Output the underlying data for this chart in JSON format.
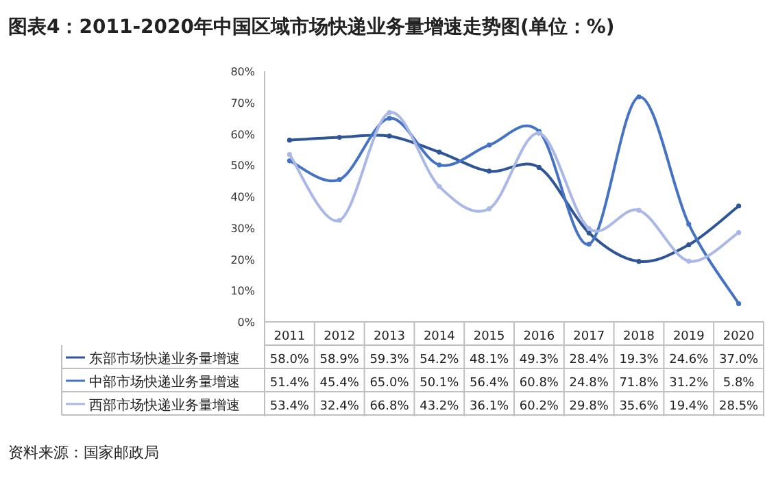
{
  "chart_data": {
    "type": "line",
    "title": "图表4：2011-2020年中国区域市场快递业务量增速走势图(单位：%)",
    "categories": [
      "2011",
      "2012",
      "2013",
      "2014",
      "2015",
      "2016",
      "2017",
      "2018",
      "2019",
      "2020"
    ],
    "ylim": [
      0,
      80
    ],
    "yticks": [
      {
        "value": 0,
        "label": "0%"
      },
      {
        "value": 10,
        "label": "10%"
      },
      {
        "value": 20,
        "label": "20%"
      },
      {
        "value": 30,
        "label": "30%"
      },
      {
        "value": 40,
        "label": "40%"
      },
      {
        "value": 50,
        "label": "50%"
      },
      {
        "value": 60,
        "label": "60%"
      },
      {
        "value": 70,
        "label": "70%"
      },
      {
        "value": 80,
        "label": "80%"
      }
    ],
    "marker": "circle",
    "legend": "bottom",
    "series": [
      {
        "name": "东部市场快递业务量增速",
        "color": "#2f5597",
        "values": [
          58.0,
          58.9,
          59.3,
          54.2,
          48.1,
          49.3,
          28.4,
          19.3,
          24.6,
          37.0
        ],
        "value_labels": [
          "58.0%",
          "58.9%",
          "59.3%",
          "54.2%",
          "48.1%",
          "49.3%",
          "28.4%",
          "19.3%",
          "24.6%",
          "37.0%"
        ]
      },
      {
        "name": "中部市场快递业务量增速",
        "color": "#4472c4",
        "values": [
          51.4,
          45.4,
          65.0,
          50.1,
          56.4,
          60.8,
          24.8,
          71.8,
          31.2,
          5.8
        ],
        "value_labels": [
          "51.4%",
          "45.4%",
          "65.0%",
          "50.1%",
          "56.4%",
          "60.8%",
          "24.8%",
          "71.8%",
          "31.2%",
          "5.8%"
        ]
      },
      {
        "name": "西部市场快递业务量增速",
        "color": "#a9b8e6",
        "values": [
          53.4,
          32.4,
          66.8,
          43.2,
          36.1,
          60.2,
          29.8,
          35.6,
          19.4,
          28.5
        ],
        "value_labels": [
          "53.4%",
          "32.4%",
          "66.8%",
          "43.2%",
          "36.1%",
          "60.2%",
          "29.8%",
          "35.6%",
          "19.4%",
          "28.5%"
        ]
      }
    ],
    "annotations": [
      "资料来源：国家邮政局"
    ]
  }
}
